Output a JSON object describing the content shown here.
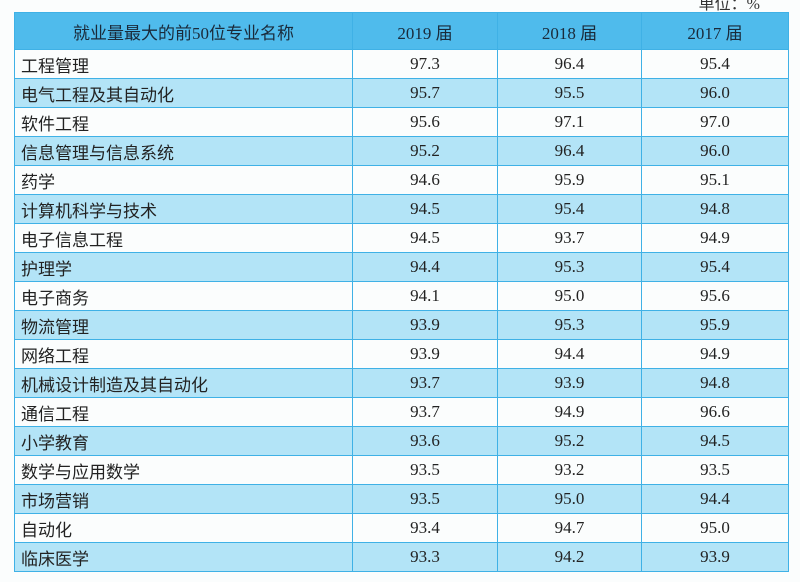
{
  "unit_label": "单位：%",
  "table": {
    "headers": [
      "就业量最大的前50位专业名称",
      "2019 届",
      "2018 届",
      "2017 届"
    ],
    "rows": [
      {
        "name": "工程管理",
        "y2019": "97.3",
        "y2018": "96.4",
        "y2017": "95.4"
      },
      {
        "name": "电气工程及其自动化",
        "y2019": "95.7",
        "y2018": "95.5",
        "y2017": "96.0"
      },
      {
        "name": "软件工程",
        "y2019": "95.6",
        "y2018": "97.1",
        "y2017": "97.0"
      },
      {
        "name": "信息管理与信息系统",
        "y2019": "95.2",
        "y2018": "96.4",
        "y2017": "96.0"
      },
      {
        "name": "药学",
        "y2019": "94.6",
        "y2018": "95.9",
        "y2017": "95.1"
      },
      {
        "name": "计算机科学与技术",
        "y2019": "94.5",
        "y2018": "95.4",
        "y2017": "94.8"
      },
      {
        "name": "电子信息工程",
        "y2019": "94.5",
        "y2018": "93.7",
        "y2017": "94.9"
      },
      {
        "name": "护理学",
        "y2019": "94.4",
        "y2018": "95.3",
        "y2017": "95.4"
      },
      {
        "name": "电子商务",
        "y2019": "94.1",
        "y2018": "95.0",
        "y2017": "95.6"
      },
      {
        "name": "物流管理",
        "y2019": "93.9",
        "y2018": "95.3",
        "y2017": "95.9"
      },
      {
        "name": "网络工程",
        "y2019": "93.9",
        "y2018": "94.4",
        "y2017": "94.9"
      },
      {
        "name": "机械设计制造及其自动化",
        "y2019": "93.7",
        "y2018": "93.9",
        "y2017": "94.8"
      },
      {
        "name": "通信工程",
        "y2019": "93.7",
        "y2018": "94.9",
        "y2017": "96.6"
      },
      {
        "name": "小学教育",
        "y2019": "93.6",
        "y2018": "95.2",
        "y2017": "94.5"
      },
      {
        "name": "数学与应用数学",
        "y2019": "93.5",
        "y2018": "93.2",
        "y2017": "93.5"
      },
      {
        "name": "市场营销",
        "y2019": "93.5",
        "y2018": "95.0",
        "y2017": "94.4"
      },
      {
        "name": "自动化",
        "y2019": "93.4",
        "y2018": "94.7",
        "y2017": "95.0"
      },
      {
        "name": "临床医学",
        "y2019": "93.3",
        "y2018": "94.2",
        "y2017": "93.9"
      }
    ]
  },
  "colors": {
    "header_bg": "#4fbbec",
    "stripe_bg": "#b3e4f7",
    "border": "#3fb1e6"
  }
}
